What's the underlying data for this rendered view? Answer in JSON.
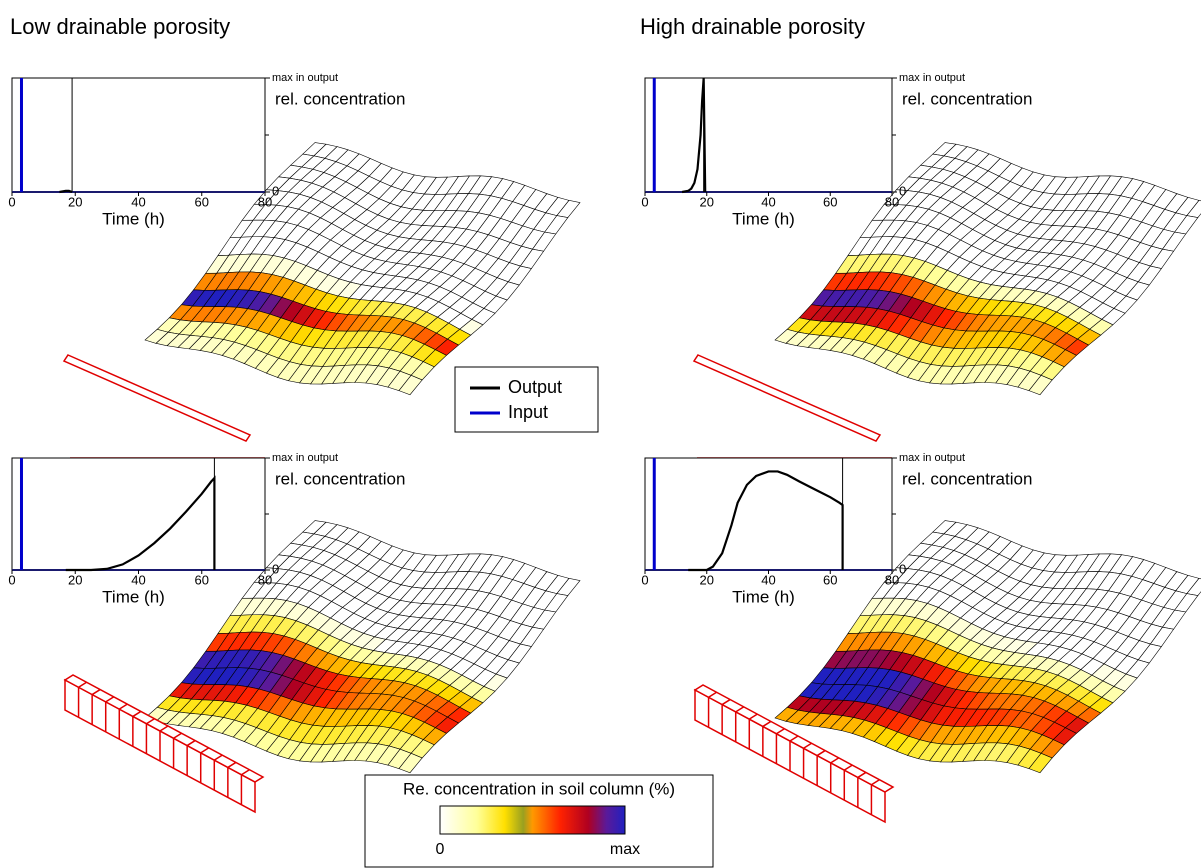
{
  "headings": [
    "Low drainable porosity",
    "High drainable porosity"
  ],
  "colorbar": {
    "title": "Re. concentration in soil column (%)",
    "min_label": "0",
    "max_label": "max"
  },
  "chart_data": [
    {
      "type": "line",
      "xlabel": "Time (h)",
      "ylabel": "rel. concentration",
      "xlim": [
        0,
        80
      ],
      "xticks": [
        0,
        20,
        40,
        60,
        80
      ],
      "ylim": [
        0,
        100
      ],
      "yticks": [
        0,
        {
          "value": 100,
          "label": "max in output"
        }
      ],
      "minor_yticks": [
        50
      ],
      "time_marker": 19,
      "series": [
        {
          "name": "Output",
          "color": "#000000",
          "x": [
            15,
            17,
            18,
            19
          ],
          "values": [
            0,
            1,
            1,
            0
          ]
        },
        {
          "name": "Input",
          "color": "#0000cc",
          "x": [
            3,
            3
          ],
          "values": [
            0,
            100
          ]
        }
      ]
    },
    {
      "type": "line",
      "xlabel": "Time (h)",
      "ylabel": "rel. concentration",
      "xlim": [
        0,
        80
      ],
      "xticks": [
        0,
        20,
        40,
        60,
        80
      ],
      "ylim": [
        0,
        100
      ],
      "yticks": [
        0,
        {
          "value": 100,
          "label": "max in output"
        }
      ],
      "minor_yticks": [
        50
      ],
      "time_marker": 64,
      "series": [
        {
          "color": "#000000",
          "x": [
            17,
            25,
            30,
            35,
            40,
            45,
            50,
            55,
            60,
            63,
            64,
            64
          ],
          "values": [
            0,
            0,
            1,
            5,
            13,
            24,
            37,
            52,
            68,
            79,
            82,
            0
          ]
        },
        {
          "color": "#0000cc",
          "x": [
            3,
            3
          ],
          "values": [
            0,
            100
          ]
        }
      ]
    },
    {
      "type": "line",
      "xlabel": "Time (h)",
      "ylabel": "rel. concentration",
      "xlim": [
        0,
        80
      ],
      "xticks": [
        0,
        20,
        40,
        60,
        80
      ],
      "ylim": [
        0,
        100
      ],
      "yticks": [
        0,
        {
          "value": 100,
          "label": "max in output"
        }
      ],
      "minor_yticks": [
        50
      ],
      "time_marker": 19,
      "series": [
        {
          "color": "#000000",
          "x": [
            12,
            14,
            15,
            16,
            17,
            18,
            18.5,
            19,
            19.5
          ],
          "values": [
            0,
            1,
            3,
            8,
            20,
            50,
            80,
            100,
            0
          ]
        },
        {
          "color": "#0000cc",
          "x": [
            3,
            3
          ],
          "values": [
            0,
            100
          ]
        }
      ]
    },
    {
      "type": "line",
      "xlabel": "Time (h)",
      "ylabel": "rel. concentration",
      "xlim": [
        0,
        80
      ],
      "xticks": [
        0,
        20,
        40,
        60,
        80
      ],
      "ylim": [
        0,
        100
      ],
      "yticks": [
        0,
        {
          "value": 100,
          "label": "max in output"
        }
      ],
      "minor_yticks": [
        50
      ],
      "time_marker": 64,
      "series": [
        {
          "color": "#000000",
          "x": [
            14,
            20,
            22,
            25,
            28,
            30,
            33,
            36,
            40,
            43,
            46,
            50,
            55,
            60,
            63,
            64,
            64
          ],
          "values": [
            0,
            0,
            3,
            15,
            40,
            60,
            76,
            84,
            88,
            88,
            85,
            79,
            72,
            65,
            60,
            58,
            0
          ]
        },
        {
          "color": "#0000cc",
          "x": [
            3,
            3
          ],
          "values": [
            0,
            100
          ]
        }
      ]
    }
  ]
}
